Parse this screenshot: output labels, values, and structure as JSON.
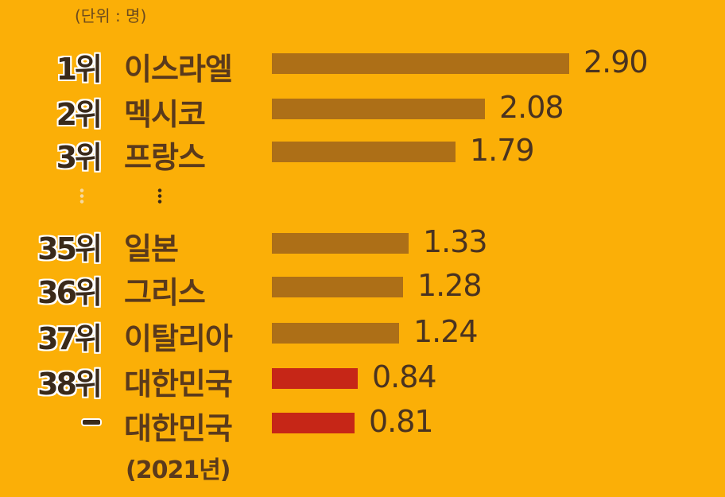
{
  "unit_label": "(단위 : 명)",
  "year_note": "(2021년)",
  "colors": {
    "background": "#FBAF07",
    "bar": "#AD6F17",
    "highlight": "#C62617"
  },
  "chart_data": {
    "type": "bar",
    "orientation": "horizontal",
    "rows": [
      {
        "rank": "1위",
        "country": "이스라엘",
        "value": 2.9,
        "display": "2.90",
        "highlight": false
      },
      {
        "rank": "2위",
        "country": "멕시코",
        "value": 2.08,
        "display": "2.08",
        "highlight": false
      },
      {
        "rank": "3위",
        "country": "프랑스",
        "value": 1.79,
        "display": "1.79",
        "highlight": false
      },
      {
        "rank": "35위",
        "country": "일본",
        "value": 1.33,
        "display": "1.33",
        "highlight": false
      },
      {
        "rank": "36위",
        "country": "그리스",
        "value": 1.28,
        "display": "1.28",
        "highlight": false
      },
      {
        "rank": "37위",
        "country": "이탈리아",
        "value": 1.24,
        "display": "1.24",
        "highlight": false
      },
      {
        "rank": "38위",
        "country": "대한민국",
        "value": 0.84,
        "display": "0.84",
        "highlight": true
      },
      {
        "rank": "",
        "country": "대한민국",
        "value": 0.81,
        "display": "0.81",
        "highlight": true
      }
    ],
    "xlim": [
      0,
      2.9
    ]
  }
}
